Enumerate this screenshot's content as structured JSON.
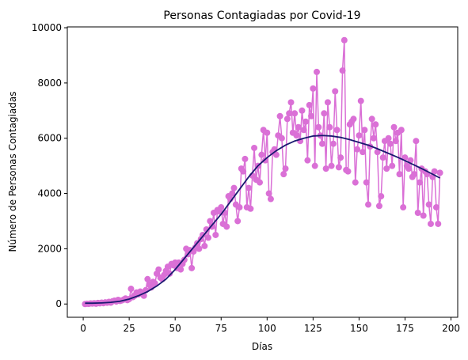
{
  "chart_data": {
    "type": "line",
    "title": "Personas Contagiadas por Covid-19",
    "xlabel": "Días",
    "ylabel": "Número de Personas Contagiadas",
    "xlim": [
      -8.65,
      203.65
    ],
    "ylim": [
      -480,
      10030
    ],
    "xticks": [
      0,
      25,
      50,
      75,
      100,
      125,
      150,
      175,
      200
    ],
    "yticks": [
      0,
      2000,
      4000,
      6000,
      8000,
      10000
    ],
    "grid": false,
    "series": [
      {
        "color": "#da70d6",
        "marker": "o",
        "x": [
          1,
          2,
          3,
          4,
          5,
          6,
          7,
          8,
          9,
          10,
          11,
          12,
          13,
          14,
          15,
          16,
          17,
          18,
          19,
          20,
          21,
          22,
          23,
          24,
          25,
          26,
          27,
          28,
          29,
          30,
          31,
          32,
          33,
          34,
          35,
          36,
          37,
          38,
          39,
          40,
          41,
          42,
          43,
          44,
          45,
          46,
          47,
          48,
          49,
          50,
          51,
          52,
          53,
          54,
          55,
          56,
          57,
          58,
          59,
          60,
          61,
          62,
          63,
          64,
          65,
          66,
          67,
          68,
          69,
          70,
          71,
          72,
          73,
          74,
          75,
          76,
          77,
          78,
          79,
          80,
          81,
          82,
          83,
          84,
          85,
          86,
          87,
          88,
          89,
          90,
          91,
          92,
          93,
          94,
          95,
          96,
          97,
          98,
          99,
          100,
          101,
          102,
          103,
          104,
          105,
          106,
          107,
          108,
          109,
          110,
          111,
          112,
          113,
          114,
          115,
          116,
          117,
          118,
          119,
          120,
          121,
          122,
          123,
          124,
          125,
          126,
          127,
          128,
          129,
          130,
          131,
          132,
          133,
          134,
          135,
          136,
          137,
          138,
          139,
          140,
          141,
          142,
          143,
          144,
          145,
          146,
          147,
          148,
          149,
          150,
          151,
          152,
          153,
          154,
          155,
          156,
          157,
          158,
          159,
          160,
          161,
          162,
          163,
          164,
          165,
          166,
          167,
          168,
          169,
          170,
          171,
          172,
          173,
          174,
          175,
          176,
          177,
          178,
          179,
          180,
          181,
          182,
          183,
          184,
          185,
          186,
          187,
          188,
          189,
          190,
          191,
          192,
          193,
          194
        ],
        "values": [
          0,
          10,
          5,
          20,
          15,
          30,
          10,
          40,
          25,
          50,
          30,
          60,
          45,
          80,
          50,
          100,
          120,
          90,
          150,
          110,
          130,
          160,
          200,
          140,
          180,
          550,
          250,
          300,
          420,
          350,
          450,
          380,
          300,
          500,
          900,
          700,
          600,
          800,
          750,
          1100,
          1250,
          950,
          900,
          1050,
          1200,
          1350,
          1100,
          1450,
          1400,
          1500,
          1300,
          1500,
          1250,
          1450,
          1600,
          2000,
          1800,
          1950,
          1300,
          1900,
          2050,
          2200,
          2000,
          2350,
          2500,
          2100,
          2700,
          2400,
          3000,
          2800,
          3300,
          2500,
          3400,
          3350,
          3500,
          2900,
          3300,
          2800,
          3900,
          3800,
          4000,
          4200,
          3600,
          3000,
          3500,
          4900,
          4800,
          5250,
          3500,
          4200,
          3450,
          4650,
          5650,
          4500,
          5000,
          4400,
          5400,
          6300,
          5200,
          6200,
          4000,
          3800,
          5500,
          5600,
          5400,
          6100,
          6800,
          6000,
          4700,
          4900,
          6700,
          6900,
          7300,
          6200,
          6900,
          6100,
          6400,
          5900,
          7000,
          6300,
          6600,
          5200,
          7200,
          6800,
          7800,
          5000,
          8400,
          6400,
          6100,
          5800,
          6900,
          4900,
          7300,
          6400,
          5000,
          5800,
          7700,
          6300,
          4950,
          5300,
          8450,
          9550,
          4850,
          4800,
          6500,
          6600,
          6700,
          4400,
          5600,
          6100,
          7350,
          5500,
          6300,
          4400,
          3600,
          5700,
          6700,
          6000,
          6500,
          5500,
          3550,
          3900,
          5300,
          5900,
          4900,
          6000,
          5800,
          5000,
          6400,
          5900,
          6200,
          4700,
          6300,
          3500,
          5300,
          5000,
          4900,
          5200,
          4600,
          4700,
          5900,
          3300,
          4400,
          4900,
          3200,
          4800,
          4700,
          3600,
          2900,
          4600,
          4800,
          3500,
          2900,
          4750
        ]
      },
      {
        "color": "#191970",
        "x": [
          1,
          5,
          10,
          15,
          20,
          25,
          30,
          35,
          40,
          45,
          50,
          55,
          60,
          65,
          70,
          75,
          80,
          85,
          90,
          95,
          100,
          105,
          110,
          115,
          120,
          125,
          130,
          135,
          140,
          145,
          150,
          155,
          160,
          165,
          170,
          175,
          180,
          185,
          190,
          194
        ],
        "values": [
          30,
          30,
          40,
          60,
          100,
          180,
          300,
          450,
          650,
          900,
          1250,
          1650,
          2050,
          2450,
          2850,
          3250,
          3700,
          4150,
          4600,
          5000,
          5300,
          5550,
          5750,
          5900,
          6000,
          6080,
          6100,
          6080,
          6030,
          5950,
          5850,
          5750,
          5620,
          5480,
          5340,
          5190,
          5030,
          4870,
          4700,
          4560
        ]
      }
    ]
  }
}
